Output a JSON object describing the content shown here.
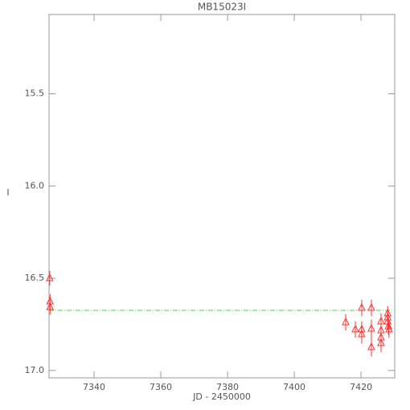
{
  "chart_data": {
    "type": "scatter",
    "title": "MB15023I",
    "x_label": "JD - 2450000",
    "y_label": "I",
    "xlim": [
      7326.5,
      7430.1
    ],
    "ylim": [
      17.04,
      15.07
    ],
    "xticks": [
      7340,
      7360,
      7380,
      7400,
      7420
    ],
    "yticks": [
      15.5,
      {
        "value": 16,
        "label": "16.0"
      },
      16.5,
      {
        "value": 17,
        "label": "17.0"
      }
    ],
    "reference_line": {
      "value": 16.674,
      "color": "#44dd44"
    },
    "series": [
      {
        "color": "#ff3333",
        "marker": "open-triangle",
        "x": [
          7326.7,
          7326.8,
          7326.8,
          7415.4,
          7418.3,
          7420.2,
          7420.2,
          7420.2,
          7423.1,
          7423.1,
          7423.1,
          7426.0,
          7426.0,
          7426.0,
          7426.0,
          7428.0,
          7428.0,
          7428.0,
          7428.2,
          7428.4
        ],
        "values": [
          16.5,
          16.626,
          16.657,
          16.739,
          16.778,
          16.778,
          16.804,
          16.661,
          16.661,
          16.774,
          16.874,
          16.735,
          16.783,
          16.822,
          16.852,
          16.691,
          16.713,
          16.735,
          16.761,
          16.778
        ],
        "errors": [
          0.04,
          0.04,
          0.04,
          0.045,
          0.045,
          0.045,
          0.05,
          0.045,
          0.045,
          0.05,
          0.05,
          0.045,
          0.05,
          0.05,
          0.05,
          0.04,
          0.04,
          0.045,
          0.045,
          0.045
        ]
      }
    ]
  }
}
